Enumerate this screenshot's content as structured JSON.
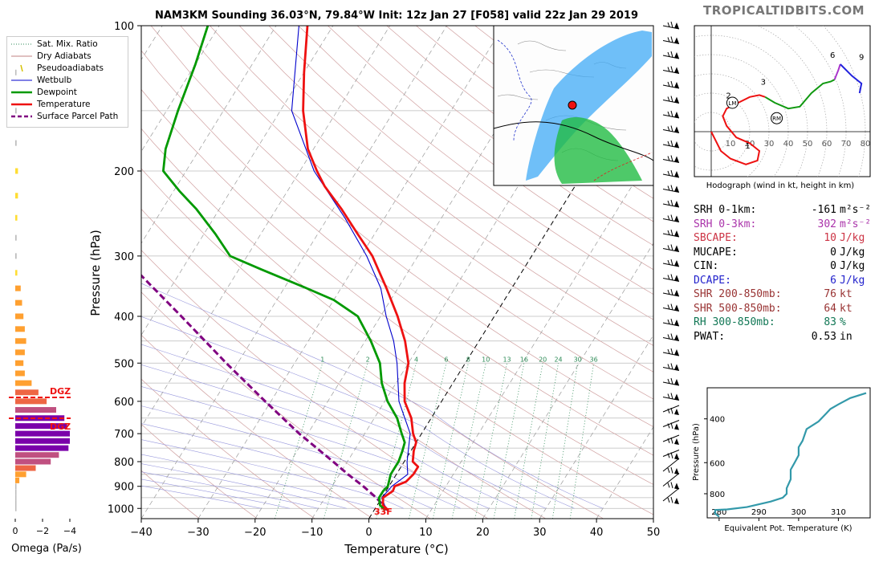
{
  "header": {
    "title": "NAM3KM Sounding 36.03°N, 79.84°W Init: 12z Jan 27 [F058] valid 22z Jan 29 2019",
    "brand": "TROPICALTIDBITS.COM"
  },
  "legend": {
    "items": [
      {
        "label": "Sat. Mix. Ratio",
        "color": "#2e8b57",
        "style": "dotted"
      },
      {
        "label": "Dry Adiabats",
        "color": "#c08080",
        "style": "solid"
      },
      {
        "label": "Pseudoadiabats",
        "color": "#d4c000",
        "style": "tick"
      },
      {
        "label": "Wetbulb",
        "color": "#0000cc",
        "style": "solid"
      },
      {
        "label": "Dewpoint",
        "color": "#009900",
        "style": "thick"
      },
      {
        "label": "Temperature",
        "color": "#ee1111",
        "style": "thick"
      },
      {
        "label": "Surface Parcel Path",
        "color": "#800080",
        "style": "dashed"
      }
    ]
  },
  "colors": {
    "temperature": "#ee1111",
    "dewpoint": "#009900",
    "wetbulb": "#0000cc",
    "parcel": "#800080",
    "theta_e": "#3399aa"
  },
  "skewt": {
    "xlabel": "Temperature (°C)",
    "ylabel": "Pressure (hPa)",
    "surface_label": "33F",
    "mixing_ratio_labels": [
      "1",
      "2",
      "4",
      "6",
      "8",
      "10",
      "13",
      "16",
      "20",
      "24",
      "30",
      "36"
    ]
  },
  "omega": {
    "xlabel": "Omega (Pa/s)",
    "xticks": [
      "0",
      "−2",
      "−4"
    ],
    "dgz_label": "DGZ"
  },
  "hodograph": {
    "caption": "Hodograph (wind in kt, height in km)",
    "ring_labels": [
      "10",
      "20",
      "30",
      "40",
      "50",
      "60",
      "70",
      "80"
    ],
    "height_labels": [
      "1",
      "2",
      "3",
      "6",
      "9"
    ],
    "lm_label": "LM",
    "rm_label": "RM"
  },
  "params": [
    {
      "name": "SRH 0-1km:",
      "value": "-161",
      "unit": "m²s⁻²",
      "color": "#000000"
    },
    {
      "name": "SRH 0-3km:",
      "value": "302",
      "unit": "m²s⁻²",
      "color": "#aa33aa"
    },
    {
      "name": "SBCAPE:",
      "value": "10",
      "unit": "J/kg",
      "color": "#cc3344"
    },
    {
      "name": "MUCAPE:",
      "value": "0",
      "unit": "J/kg",
      "color": "#000000"
    },
    {
      "name": "CIN:",
      "value": "0",
      "unit": "J/kg",
      "color": "#000000"
    },
    {
      "name": "DCAPE:",
      "value": "6",
      "unit": "J/kg",
      "color": "#2222cc"
    },
    {
      "name": "SHR 200-850mb:",
      "value": "76",
      "unit": "kt",
      "color": "#993333"
    },
    {
      "name": "SHR 500-850mb:",
      "value": "64",
      "unit": "kt",
      "color": "#993333"
    },
    {
      "name": "RH 300-850mb:",
      "value": "83",
      "unit": "%",
      "color": "#117755"
    },
    {
      "name": "PWAT:",
      "value": "0.53",
      "unit": "in",
      "color": "#000000"
    }
  ],
  "theta_e": {
    "xlabel": "Equivalent Pot. Temperature (K)",
    "ylabel": "Pressure (hPa)",
    "xticks": [
      "280",
      "290",
      "300",
      "310"
    ],
    "yticks": [
      "400",
      "600",
      "800"
    ]
  },
  "chart_data": [
    {
      "type": "line",
      "title": "NAM3KM Sounding 36.03°N, 79.84°W Init: 12z Jan 27 [F058] valid 22z Jan 29 2019",
      "xlabel": "Temperature (°C)",
      "ylabel": "Pressure (hPa)",
      "xlim": [
        -40,
        50
      ],
      "ylim": [
        1050,
        100
      ],
      "y_scale": "log",
      "yticks": [
        100,
        200,
        300,
        400,
        500,
        600,
        700,
        800,
        900,
        1000
      ],
      "xticks": [
        -40,
        -30,
        -20,
        -10,
        0,
        10,
        20,
        30,
        40,
        50
      ],
      "series": [
        {
          "name": "Temperature",
          "points": [
            [
              1010,
              2.5
            ],
            [
              985,
              1.0
            ],
            [
              950,
              0.2
            ],
            [
              920,
              1.2
            ],
            [
              900,
              1.0
            ],
            [
              880,
              2.5
            ],
            [
              850,
              3.0
            ],
            [
              820,
              3.0
            ],
            [
              800,
              1.5
            ],
            [
              760,
              0.5
            ],
            [
              730,
              0.0
            ],
            [
              700,
              -1.5
            ],
            [
              650,
              -3.5
            ],
            [
              600,
              -6.5
            ],
            [
              550,
              -8.5
            ],
            [
              500,
              -10.0
            ],
            [
              450,
              -13.0
            ],
            [
              400,
              -17.0
            ],
            [
              350,
              -22.0
            ],
            [
              320,
              -25.5
            ],
            [
              300,
              -28.0
            ],
            [
              270,
              -33.0
            ],
            [
              240,
              -38.5
            ],
            [
              215,
              -44.0
            ],
            [
              200,
              -47.0
            ],
            [
              180,
              -51.0
            ],
            [
              150,
              -56.0
            ],
            [
              125,
              -60.0
            ],
            [
              100,
              -64.5
            ]
          ]
        },
        {
          "name": "Dewpoint",
          "points": [
            [
              1010,
              2.0
            ],
            [
              985,
              0.5
            ],
            [
              950,
              -0.5
            ],
            [
              920,
              -0.5
            ],
            [
              900,
              -0.2
            ],
            [
              850,
              -1.0
            ],
            [
              820,
              -1.0
            ],
            [
              800,
              -1.0
            ],
            [
              760,
              -1.5
            ],
            [
              730,
              -2.0
            ],
            [
              700,
              -3.5
            ],
            [
              650,
              -6.0
            ],
            [
              600,
              -9.5
            ],
            [
              550,
              -12.5
            ],
            [
              500,
              -15.0
            ],
            [
              450,
              -19.0
            ],
            [
              400,
              -24.0
            ],
            [
              370,
              -30.0
            ],
            [
              350,
              -36.0
            ],
            [
              320,
              -46.0
            ],
            [
              300,
              -53.0
            ],
            [
              270,
              -58.0
            ],
            [
              240,
              -64.0
            ],
            [
              220,
              -69.0
            ],
            [
              200,
              -74.0
            ],
            [
              180,
              -76.0
            ],
            [
              150,
              -78.0
            ],
            [
              120,
              -80.0
            ],
            [
              100,
              -82.0
            ]
          ]
        },
        {
          "name": "Wetbulb",
          "points": [
            [
              1010,
              2.2
            ],
            [
              950,
              0.0
            ],
            [
              900,
              0.5
            ],
            [
              850,
              2.0
            ],
            [
              800,
              0.5
            ],
            [
              700,
              -2.0
            ],
            [
              600,
              -7.5
            ],
            [
              500,
              -12.0
            ],
            [
              450,
              -15.0
            ],
            [
              400,
              -19.0
            ],
            [
              350,
              -23.0
            ],
            [
              300,
              -29.0
            ],
            [
              250,
              -37.0
            ],
            [
              200,
              -47.5
            ],
            [
              150,
              -58.0
            ],
            [
              100,
              -66.0
            ]
          ]
        },
        {
          "name": "Surface Parcel Path",
          "points": [
            [
              1010,
              2.5
            ],
            [
              950,
              -1.0
            ],
            [
              900,
              -4.5
            ],
            [
              850,
              -8.5
            ],
            [
              800,
              -12.5
            ],
            [
              700,
              -21.5
            ],
            [
              600,
              -31.0
            ],
            [
              500,
              -42.0
            ],
            [
              400,
              -55.0
            ],
            [
              300,
              -72.0
            ],
            [
              260,
              -80.0
            ]
          ]
        }
      ]
    },
    {
      "type": "bar",
      "xlabel": "Omega (Pa/s)",
      "xlim": [
        1,
        -5
      ],
      "orientation": "horizontal",
      "levels_hPa": [
        1000,
        975,
        950,
        925,
        900,
        875,
        850,
        825,
        800,
        775,
        750,
        725,
        700,
        675,
        650,
        625,
        600,
        575,
        550,
        525,
        500,
        475,
        450,
        425,
        400,
        375,
        350,
        325,
        300,
        275,
        250,
        225,
        200,
        175,
        150,
        125
      ],
      "values": [
        -0.05,
        -0.05,
        -0.05,
        -0.05,
        0.0,
        -0.3,
        -0.8,
        -1.5,
        -2.6,
        -3.2,
        -3.9,
        -4.0,
        -4.0,
        -3.8,
        -3.6,
        -3.0,
        -2.3,
        -1.7,
        -1.2,
        -0.7,
        -0.6,
        -0.7,
        -0.8,
        -0.7,
        -0.6,
        -0.5,
        -0.4,
        -0.15,
        -0.1,
        -0.1,
        -0.15,
        -0.2,
        -0.2,
        -0.1,
        -0.1,
        -0.05
      ],
      "annotations": [
        {
          "text": "DGZ",
          "pressure": 590
        },
        {
          "text": "DGZ",
          "pressure": 645
        }
      ]
    },
    {
      "type": "line",
      "title": "Hodograph (wind in kt, height in km)",
      "xlim": [
        -10,
        85
      ],
      "ylim": [
        -20,
        55
      ],
      "rings_kt": [
        10,
        20,
        30,
        40,
        50,
        60,
        70,
        80
      ],
      "series": [
        {
          "name": "0-3 km",
          "points": [
            [
              0,
              0
            ],
            [
              5,
              -10
            ],
            [
              10,
              -14
            ],
            [
              18,
              -17
            ],
            [
              24,
              -15
            ],
            [
              25,
              -10
            ],
            [
              20,
              -6
            ],
            [
              13,
              -3
            ],
            [
              8,
              3
            ],
            [
              6,
              8
            ],
            [
              8,
              12
            ],
            [
              14,
              15
            ],
            [
              20,
              18
            ],
            [
              25,
              19
            ],
            [
              28,
              18
            ]
          ]
        },
        {
          "name": "3-6 km",
          "points": [
            [
              28,
              18
            ],
            [
              33,
              15
            ],
            [
              40,
              12
            ],
            [
              46,
              13
            ],
            [
              52,
              20
            ],
            [
              58,
              25
            ],
            [
              62,
              26
            ],
            [
              64,
              27
            ]
          ]
        },
        {
          "name": "6-9 km",
          "points": [
            [
              64,
              27
            ],
            [
              66,
              32
            ],
            [
              67,
              35
            ]
          ]
        },
        {
          "name": "9-12 km",
          "points": [
            [
              67,
              35
            ],
            [
              73,
              29
            ],
            [
              78,
              25
            ],
            [
              77,
              20
            ]
          ]
        }
      ],
      "storm_motion": {
        "LM": [
          11,
          15
        ],
        "RM": [
          34,
          7
        ]
      }
    },
    {
      "type": "line",
      "title": "",
      "xlabel": "Equivalent Pot. Temperature (K)",
      "ylabel": "Pressure (hPa)",
      "xlim": [
        277,
        318
      ],
      "ylim": [
        1000,
        300
      ],
      "y_scale": "log",
      "series": [
        {
          "name": "theta-e",
          "points": [
            [
              280,
              990
            ],
            [
              279,
              960
            ],
            [
              279,
              930
            ],
            [
              282,
              925
            ],
            [
              287,
              905
            ],
            [
              293,
              860
            ],
            [
              296,
              830
            ],
            [
              297,
              800
            ],
            [
              297,
              760
            ],
            [
              298,
              700
            ],
            [
              298,
              640
            ],
            [
              299,
              600
            ],
            [
              300,
              560
            ],
            [
              300,
              520
            ],
            [
              301,
              490
            ],
            [
              302,
              440
            ],
            [
              305,
              410
            ],
            [
              307,
              380
            ],
            [
              308,
              365
            ],
            [
              310,
              350
            ],
            [
              313,
              330
            ],
            [
              317,
              315
            ]
          ]
        }
      ]
    }
  ]
}
